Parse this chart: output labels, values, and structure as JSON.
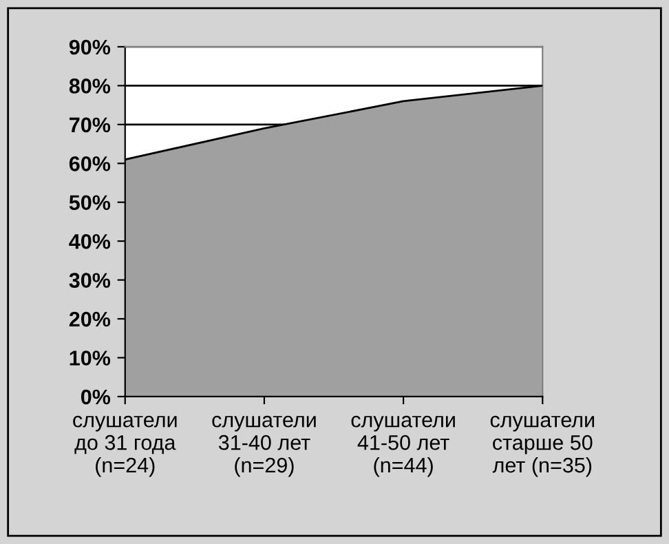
{
  "chart_data": {
    "type": "area",
    "categories": [
      "слушатели\nдо 31 года\n(n=24)",
      "слушатели\n31-40 лет\n(n=29)",
      "слушатели\n41-50 лет\n(n=44)",
      "слушатели\nстарше 50\nлет (n=35)"
    ],
    "values": [
      61,
      69,
      76,
      80
    ],
    "color": "#a0a0a0",
    "ylim": [
      0,
      90
    ],
    "yticks": [
      {
        "value": 0,
        "label": "0%"
      },
      {
        "value": 10,
        "label": "10%"
      },
      {
        "value": 20,
        "label": "20%"
      },
      {
        "value": 30,
        "label": "30%"
      },
      {
        "value": 40,
        "label": "40%"
      },
      {
        "value": 50,
        "label": "50%"
      },
      {
        "value": 60,
        "label": "60%"
      },
      {
        "value": 70,
        "label": "70%"
      },
      {
        "value": 80,
        "label": "80%"
      },
      {
        "value": 90,
        "label": "90%"
      }
    ],
    "grid": "y"
  }
}
